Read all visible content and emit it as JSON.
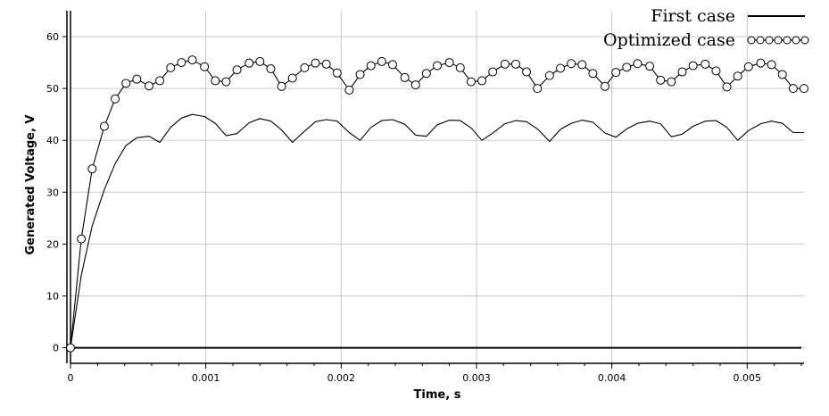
{
  "chart_data": {
    "type": "line",
    "xlabel": "Time, s",
    "ylabel": "Generated Voltage, V",
    "xlim": [
      0,
      0.00542
    ],
    "ylim": [
      -3,
      65
    ],
    "xticks": [
      0,
      0.001,
      0.002,
      0.003,
      0.004,
      0.005
    ],
    "xtick_labels": [
      "0",
      "0.001",
      "0.002",
      "0.003",
      "0.004",
      "0.005"
    ],
    "yticks": [
      0,
      10,
      20,
      30,
      40,
      50,
      60
    ],
    "ytick_labels": [
      "0",
      "10",
      "20",
      "30",
      "40",
      "50",
      "60"
    ],
    "grid": true,
    "legend_position": "top-right",
    "series": [
      {
        "name": "First case",
        "color": "#000000",
        "marker": "none",
        "x": [
          0,
          0.0054
        ],
        "y": [
          0,
          0
        ]
      },
      {
        "name": "Optimized case",
        "color": "#000000",
        "marker": "circle",
        "x": [
          0,
          8e-05,
          0.00016,
          0.00025,
          0.00033,
          0.00041,
          0.00049,
          0.00058,
          0.00066,
          0.00074,
          0.00082,
          0.0009,
          0.00099,
          0.00107,
          0.00115,
          0.00123,
          0.00132,
          0.0014,
          0.00148,
          0.00156,
          0.00164,
          0.00173,
          0.00181,
          0.00189,
          0.00197,
          0.00206,
          0.00214,
          0.00222,
          0.0023,
          0.00238,
          0.00247,
          0.00255,
          0.00263,
          0.00271,
          0.0028,
          0.00288,
          0.00296,
          0.00304,
          0.00312,
          0.00321,
          0.00329,
          0.00337,
          0.00345,
          0.00354,
          0.00362,
          0.0037,
          0.00378,
          0.00386,
          0.00395,
          0.00403,
          0.00411,
          0.00419,
          0.00428,
          0.00436,
          0.00444,
          0.00452,
          0.0046,
          0.00469,
          0.00477,
          0.00485,
          0.00493,
          0.00501,
          0.0051,
          0.00518,
          0.00526,
          0.00534,
          0.00542
        ],
        "y": [
          0,
          21,
          34.5,
          42.7,
          48,
          51,
          51.8,
          50.5,
          51.5,
          54,
          55,
          55.5,
          54.2,
          51.5,
          51.3,
          53.6,
          54.9,
          55.2,
          53.8,
          50.4,
          52,
          54,
          54.9,
          54.7,
          53,
          49.7,
          52.7,
          54.4,
          55.2,
          54.6,
          52.1,
          50.7,
          52.9,
          54.4,
          55,
          54,
          51.3,
          51.5,
          53.2,
          54.7,
          54.7,
          53.2,
          50,
          52.5,
          53.9,
          54.8,
          54.6,
          52.9,
          50.4,
          53.1,
          54.1,
          54.8,
          54.3,
          51.6,
          51.3,
          53.2,
          54.4,
          54.7,
          53.4,
          50.3,
          52.4,
          54.2,
          54.9,
          54.6,
          52.7,
          50,
          50
        ]
      },
      {
        "name": "",
        "color": "#000000",
        "marker": "none",
        "x": [
          0,
          8e-05,
          0.00016,
          0.00025,
          0.00033,
          0.00041,
          0.00049,
          0.00058,
          0.00066,
          0.00074,
          0.00082,
          0.0009,
          0.00099,
          0.00107,
          0.00115,
          0.00123,
          0.00132,
          0.0014,
          0.00148,
          0.00156,
          0.00164,
          0.00173,
          0.00181,
          0.00189,
          0.00197,
          0.00206,
          0.00214,
          0.00222,
          0.0023,
          0.00238,
          0.00247,
          0.00255,
          0.00263,
          0.00271,
          0.0028,
          0.00288,
          0.00296,
          0.00304,
          0.00312,
          0.00321,
          0.00329,
          0.00337,
          0.00345,
          0.00354,
          0.00362,
          0.0037,
          0.00378,
          0.00386,
          0.00395,
          0.00403,
          0.00411,
          0.00419,
          0.00428,
          0.00436,
          0.00444,
          0.00452,
          0.0046,
          0.00469,
          0.00477,
          0.00485,
          0.00493,
          0.00501,
          0.0051,
          0.00518,
          0.00526,
          0.00534,
          0.00542
        ],
        "y": [
          0,
          14,
          23.5,
          30.5,
          35.5,
          39,
          40.5,
          40.8,
          39.6,
          42.5,
          44.3,
          45,
          44.6,
          43.3,
          40.9,
          41.3,
          43.4,
          44.2,
          43.7,
          42,
          39.6,
          41.8,
          43.6,
          44,
          43.7,
          41.5,
          40,
          42.5,
          43.8,
          44,
          43.1,
          41,
          40.8,
          43,
          43.9,
          43.8,
          42.4,
          40,
          41.4,
          43.2,
          43.8,
          43.6,
          42.2,
          39.8,
          42.1,
          43.3,
          43.9,
          43.5,
          41.4,
          40.6,
          42.2,
          43.3,
          43.7,
          43.2,
          40.7,
          41.2,
          42.7,
          43.7,
          43.8,
          42.5,
          40,
          41.9,
          43.2,
          43.7,
          43.3,
          41.5,
          41.5
        ]
      }
    ]
  }
}
